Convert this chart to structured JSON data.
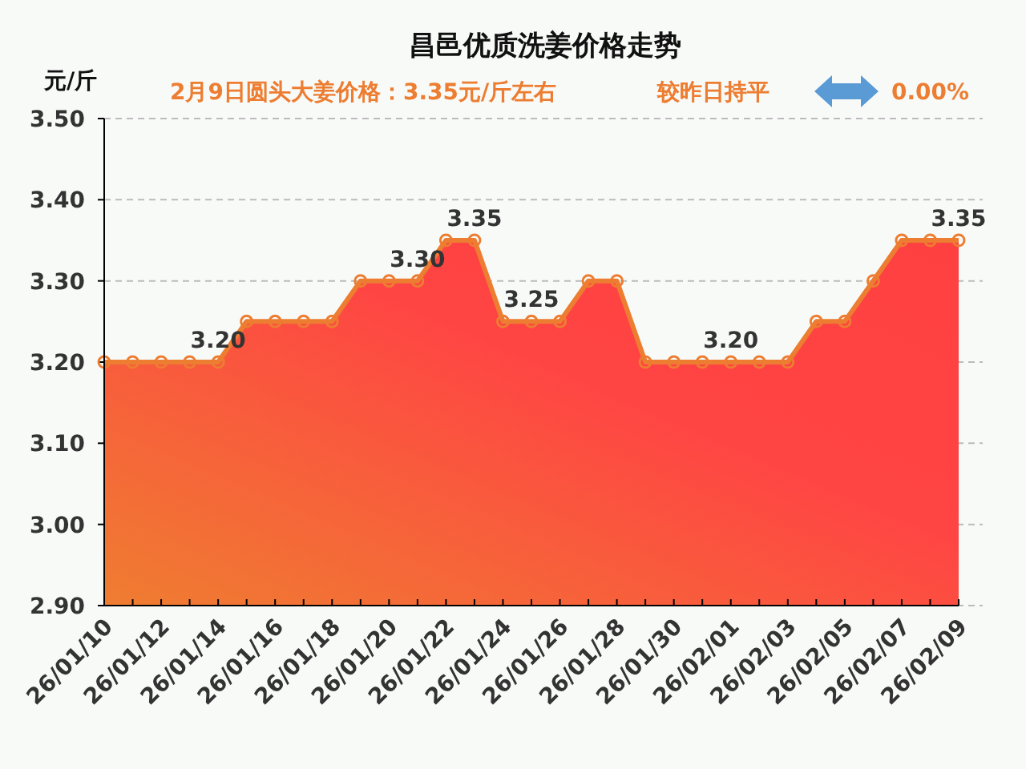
{
  "chart_data": {
    "type": "area",
    "title": "昌邑优质洗姜价格走势",
    "subtitle": "2月9日圆头大姜价格：3.35元/斤左右",
    "ylabel": "元/斤",
    "annotations": [
      "较昨日持平",
      "0.00%"
    ],
    "categories": [
      "26/01/10",
      null,
      "26/01/12",
      null,
      "26/01/14",
      null,
      "26/01/16",
      null,
      "26/01/18",
      null,
      "26/01/20",
      null,
      "26/01/22",
      null,
      "26/01/24",
      null,
      "26/01/26",
      null,
      "26/01/28",
      null,
      "26/01/30",
      null,
      "26/02/01",
      null,
      "26/02/03",
      null,
      "26/02/05",
      null,
      "26/02/07",
      null,
      "26/02/09"
    ],
    "series": [
      {
        "color": "#ed7d31",
        "values": [
          3.2,
          3.2,
          3.2,
          3.2,
          3.2,
          3.25,
          3.25,
          3.25,
          3.25,
          3.3,
          3.3,
          3.3,
          3.35,
          3.35,
          3.25,
          3.25,
          3.25,
          3.3,
          3.3,
          3.2,
          3.2,
          3.2,
          3.2,
          3.2,
          3.2,
          3.25,
          3.25,
          3.3,
          3.35,
          3.35,
          3.35
        ],
        "value_labels": [
          null,
          null,
          null,
          null,
          "3.20",
          null,
          null,
          null,
          null,
          null,
          null,
          "3.30",
          null,
          "3.35",
          null,
          "3.25",
          null,
          null,
          null,
          null,
          null,
          null,
          "3.20",
          null,
          null,
          null,
          null,
          null,
          null,
          null,
          "3.35"
        ]
      }
    ],
    "ylim": [
      2.9,
      3.5
    ],
    "yticks": [
      {
        "value": 2.9,
        "label": "2.90"
      },
      {
        "value": 3.0,
        "label": "3.00"
      },
      {
        "value": 3.1,
        "label": "3.10"
      },
      {
        "value": 3.2,
        "label": "3.20"
      },
      {
        "value": 3.3,
        "label": "3.30"
      },
      {
        "value": 3.4,
        "label": "3.40"
      },
      {
        "value": 3.5,
        "label": "3.50"
      }
    ],
    "grid": "y",
    "marker": "circle",
    "line_style": "solid"
  }
}
